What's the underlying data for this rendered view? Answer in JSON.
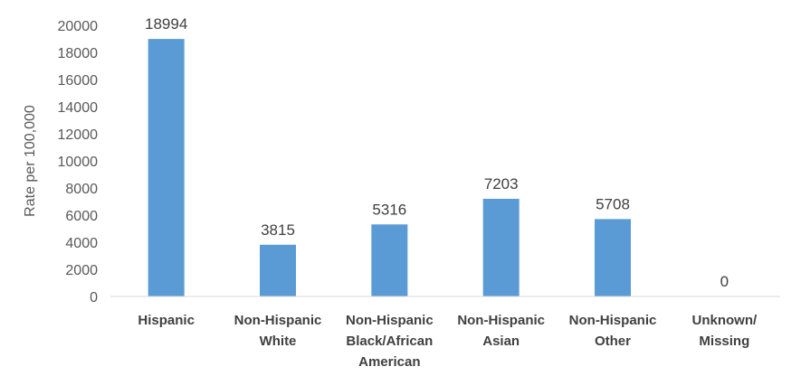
{
  "chart_data": {
    "type": "bar",
    "categories": [
      [
        "Hispanic"
      ],
      [
        "Non-Hispanic",
        "White"
      ],
      [
        "Non-Hispanic",
        "Black/African",
        "American"
      ],
      [
        "Non-Hispanic",
        "Asian"
      ],
      [
        "Non-Hispanic",
        "Other"
      ],
      [
        "Unknown/",
        "Missing"
      ]
    ],
    "values": [
      18994,
      3815,
      5316,
      7203,
      5708,
      0
    ],
    "value_labels": [
      "18994",
      "3815",
      "5316",
      "7203",
      "5708",
      "0"
    ],
    "title": "",
    "xlabel": "",
    "ylabel": "Rate per 100,000",
    "ylim": [
      0,
      20000
    ],
    "yticks": [
      0,
      2000,
      4000,
      6000,
      8000,
      10000,
      12000,
      14000,
      16000,
      18000,
      20000
    ],
    "ytick_labels": [
      "0",
      "2000",
      "4000",
      "6000",
      "8000",
      "10000",
      "12000",
      "14000",
      "16000",
      "18000",
      "20000"
    ],
    "grid": false,
    "legend": "none",
    "bar_color": "#5B9BD5",
    "axis_color": "#D9D9D9"
  }
}
